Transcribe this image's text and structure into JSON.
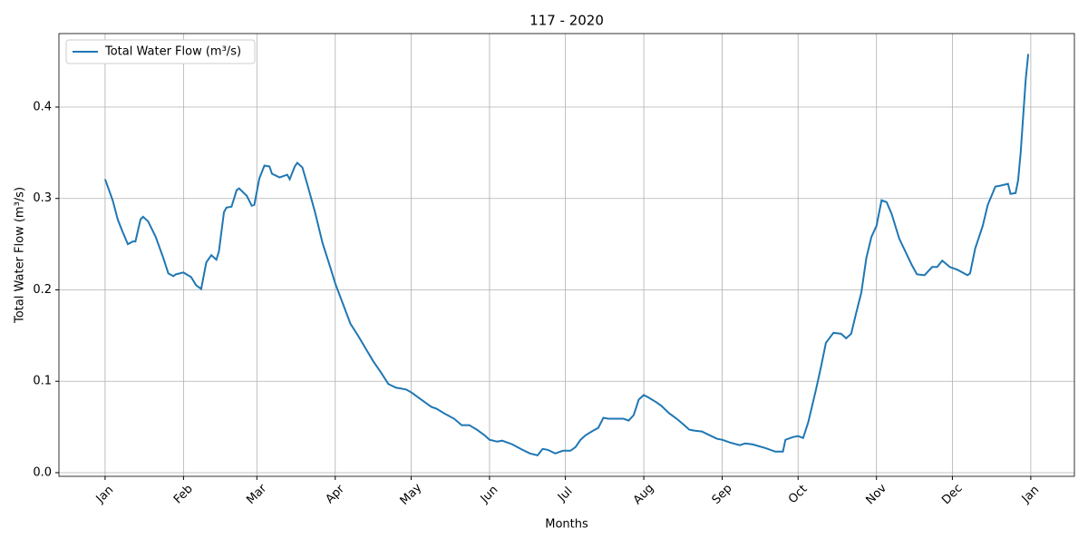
{
  "chart_data": {
    "type": "line",
    "title": "117 - 2020",
    "xlabel": "Months",
    "ylabel": "Total Water Flow (m³/s)",
    "x": [
      0,
      3,
      5,
      7,
      9,
      11,
      12,
      14,
      15,
      17,
      20,
      23,
      25,
      27,
      28,
      31,
      34,
      36,
      38,
      40,
      42,
      44,
      45,
      47,
      48,
      50,
      52,
      53,
      56,
      58,
      59,
      61,
      63,
      65,
      66,
      69,
      70,
      72,
      73,
      75,
      76,
      78,
      80,
      83,
      86,
      89,
      91,
      94,
      97,
      100,
      103,
      106,
      109,
      112,
      115,
      117,
      119,
      121,
      125,
      129,
      131,
      134,
      138,
      141,
      144,
      147,
      150,
      152,
      155,
      157,
      161,
      165,
      168,
      171,
      173,
      175,
      178,
      181,
      184,
      186,
      188,
      190,
      193,
      195,
      197,
      199,
      202,
      205,
      207,
      209,
      211,
      213,
      215,
      218,
      220,
      223,
      226,
      229,
      231,
      233,
      236,
      239,
      242,
      244,
      247,
      251,
      253,
      256,
      261,
      265,
      268,
      269,
      272,
      274,
      276,
      278,
      281,
      283,
      285,
      288,
      291,
      293,
      295,
      297,
      299,
      301,
      303,
      305,
      307,
      309,
      311,
      314,
      319,
      321,
      324,
      327,
      329,
      331,
      334,
      337,
      341,
      342,
      344,
      347,
      349,
      352,
      354,
      357,
      358,
      360,
      361,
      362,
      364,
      365
    ],
    "series": [
      {
        "name": "Total Water Flow (m³/s)",
        "color": "#1f77b4",
        "values": [
          0.321,
          0.298,
          0.277,
          0.263,
          0.25,
          0.253,
          0.253,
          0.277,
          0.28,
          0.275,
          0.258,
          0.235,
          0.218,
          0.215,
          0.217,
          0.219,
          0.214,
          0.205,
          0.201,
          0.23,
          0.238,
          0.233,
          0.242,
          0.285,
          0.29,
          0.291,
          0.309,
          0.311,
          0.303,
          0.292,
          0.293,
          0.322,
          0.336,
          0.335,
          0.327,
          0.323,
          0.324,
          0.326,
          0.321,
          0.335,
          0.339,
          0.334,
          0.315,
          0.285,
          0.251,
          0.225,
          0.207,
          0.185,
          0.163,
          0.15,
          0.136,
          0.122,
          0.11,
          0.097,
          0.093,
          0.092,
          0.091,
          0.088,
          0.08,
          0.072,
          0.07,
          0.065,
          0.059,
          0.052,
          0.052,
          0.047,
          0.041,
          0.036,
          0.034,
          0.035,
          0.031,
          0.025,
          0.021,
          0.019,
          0.026,
          0.025,
          0.021,
          0.024,
          0.024,
          0.028,
          0.036,
          0.041,
          0.046,
          0.049,
          0.06,
          0.059,
          0.059,
          0.059,
          0.057,
          0.063,
          0.08,
          0.085,
          0.082,
          0.077,
          0.073,
          0.065,
          0.059,
          0.052,
          0.047,
          0.046,
          0.045,
          0.041,
          0.037,
          0.036,
          0.033,
          0.03,
          0.032,
          0.031,
          0.027,
          0.023,
          0.023,
          0.036,
          0.039,
          0.04,
          0.038,
          0.055,
          0.09,
          0.115,
          0.142,
          0.153,
          0.152,
          0.147,
          0.152,
          0.175,
          0.197,
          0.235,
          0.258,
          0.27,
          0.298,
          0.296,
          0.283,
          0.256,
          0.227,
          0.217,
          0.216,
          0.225,
          0.225,
          0.232,
          0.225,
          0.222,
          0.216,
          0.218,
          0.245,
          0.27,
          0.293,
          0.313,
          0.314,
          0.316,
          0.305,
          0.306,
          0.32,
          0.35,
          0.43,
          0.458
        ]
      }
    ],
    "xlim": [
      -18.25,
      383.25
    ],
    "xticks": [
      {
        "value": 0,
        "label": "Jan"
      },
      {
        "value": 31,
        "label": "Feb"
      },
      {
        "value": 60,
        "label": "Mar"
      },
      {
        "value": 91,
        "label": "Apr"
      },
      {
        "value": 121,
        "label": "May"
      },
      {
        "value": 152,
        "label": "Jun"
      },
      {
        "value": 182,
        "label": "Jul"
      },
      {
        "value": 213,
        "label": "Aug"
      },
      {
        "value": 244,
        "label": "Sep"
      },
      {
        "value": 274,
        "label": "Oct"
      },
      {
        "value": 305,
        "label": "Nov"
      },
      {
        "value": 335,
        "label": "Dec"
      },
      {
        "value": 366,
        "label": "Jan"
      }
    ],
    "ylim": [
      -0.004,
      0.4804
    ],
    "yticks": [
      {
        "value": 0,
        "label": "0.0"
      },
      0.1,
      0.2,
      0.3,
      0.4
    ],
    "grid": true,
    "legend": "upper left"
  }
}
